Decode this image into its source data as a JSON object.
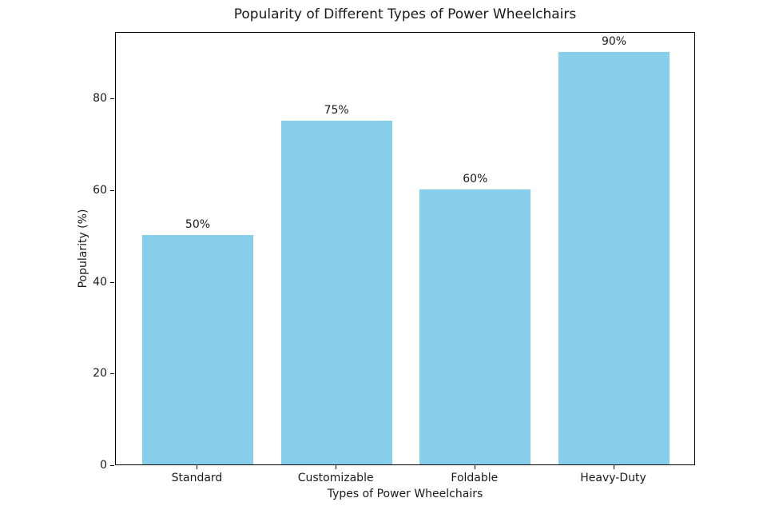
{
  "chart_data": {
    "type": "bar",
    "title": "Popularity of Different Types of Power Wheelchairs",
    "categories": [
      "Standard",
      "Customizable",
      "Foldable",
      "Heavy-Duty"
    ],
    "values": [
      50,
      75,
      60,
      90
    ],
    "bar_labels": [
      "50%",
      "75%",
      "60%",
      "90%"
    ],
    "xlabel": "Types of Power Wheelchairs",
    "ylabel": "Popularity (%)",
    "yticks": [
      0,
      20,
      40,
      60,
      80
    ],
    "ylim": [
      0,
      94.5
    ],
    "xlim": [
      -0.59,
      3.59
    ],
    "bar_width": 0.8,
    "bar_color": "#87CEEB",
    "axis_color": "#000000",
    "text_color": "#1a1a1a",
    "background_color": "#FFFFFF",
    "grid": false,
    "legend": null
  }
}
